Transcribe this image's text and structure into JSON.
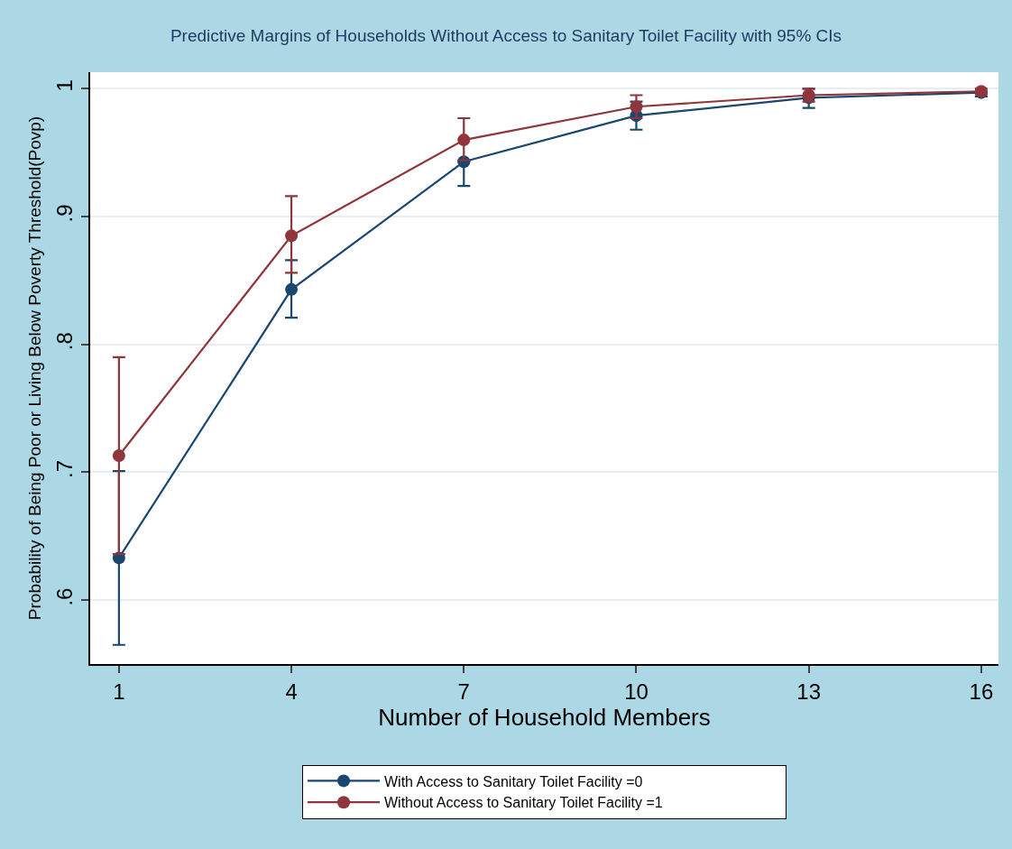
{
  "chart_data": {
    "type": "line",
    "title": "Predictive Margins of Households Without Access to Sanitary Toilet Facility with 95% CIs",
    "xlabel": "Number of Household Members",
    "ylabel": "Probability of Being Poor or Living Below Poverty Threshold(Povp)",
    "x": [
      1,
      4,
      7,
      10,
      13,
      16
    ],
    "series": [
      {
        "name": "With Access to Sanitary Toilet Facility =0",
        "color": "#1a476f",
        "values": [
          0.633,
          0.843,
          0.943,
          0.979,
          0.993,
          0.997
        ],
        "errors": [
          [
            0.565,
            0.701
          ],
          [
            0.821,
            0.866
          ],
          [
            0.924,
            0.943
          ],
          [
            0.968,
            0.99
          ],
          [
            0.985,
            1.0
          ],
          [
            0.994,
            0.997
          ]
        ]
      },
      {
        "name": "Without Access to Sanitary Toilet Facility =1",
        "color": "#90353b",
        "values": [
          0.713,
          0.885,
          0.96,
          0.986,
          0.995,
          0.998
        ],
        "errors": [
          [
            0.636,
            0.79
          ],
          [
            0.856,
            0.916
          ],
          [
            0.944,
            0.977
          ],
          [
            0.977,
            0.995
          ],
          [
            0.99,
            1.0
          ],
          [
            0.996,
            1.0
          ]
        ]
      }
    ],
    "xlim": [
      0.5,
      16.3
    ],
    "xticks": [
      1,
      4,
      7,
      10,
      13,
      16
    ],
    "ylim": [
      0.55,
      1.013
    ],
    "yticks": [
      {
        "value": 0.6,
        "label": ".6"
      },
      {
        "value": 0.7,
        "label": ".7"
      },
      {
        "value": 0.8,
        "label": ".8"
      },
      {
        "value": 0.9,
        "label": ".9"
      },
      {
        "value": 1,
        "label": "1"
      }
    ],
    "grid": "y",
    "legend": "bottom",
    "marker": "circle",
    "line_style": "solid"
  }
}
